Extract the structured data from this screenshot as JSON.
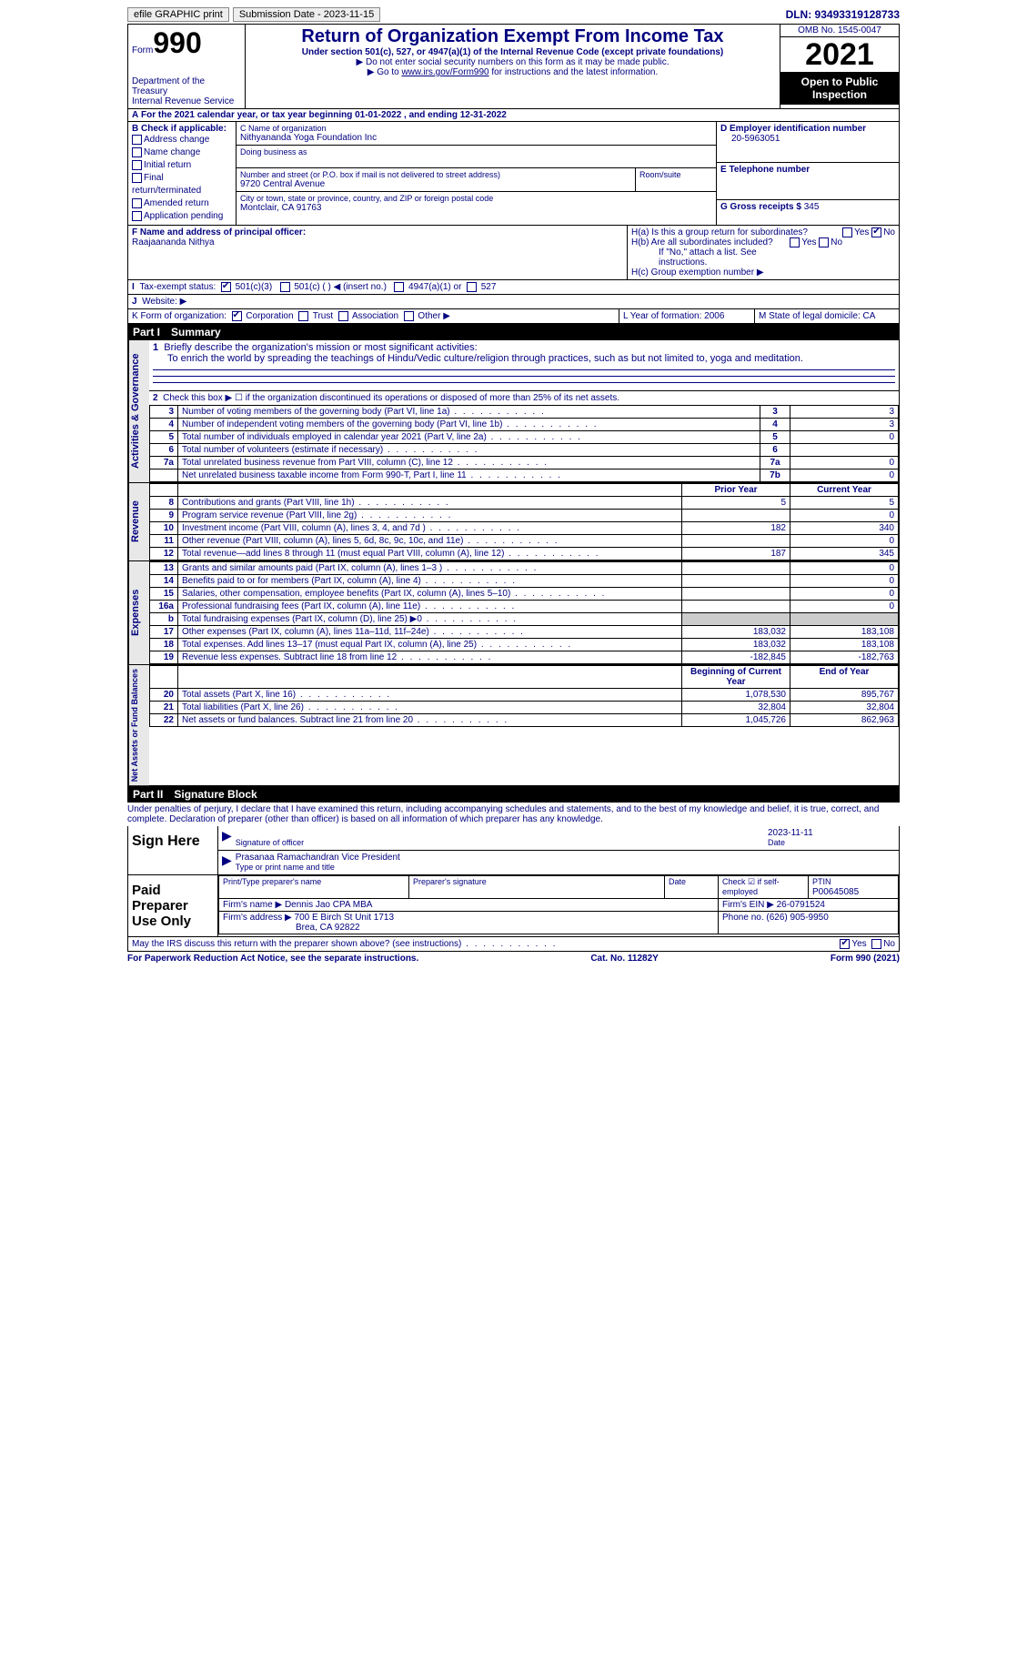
{
  "topbar": {
    "efile": "efile GRAPHIC print",
    "submission": "Submission Date - 2023-11-15",
    "dln": "DLN: 93493319128733"
  },
  "header": {
    "form_label": "Form",
    "form_number": "990",
    "dept": "Department of the Treasury",
    "irs": "Internal Revenue Service",
    "title": "Return of Organization Exempt From Income Tax",
    "subtitle": "Under section 501(c), 527, or 4947(a)(1) of the Internal Revenue Code (except private foundations)",
    "note1": "▶ Do not enter social security numbers on this form as it may be made public.",
    "note2_pre": "▶ Go to ",
    "note2_link": "www.irs.gov/Form990",
    "note2_post": " for instructions and the latest information.",
    "omb": "OMB No. 1545-0047",
    "year": "2021",
    "open": "Open to Public Inspection"
  },
  "periodA": "For the 2021 calendar year, or tax year beginning 01-01-2022   , and ending 12-31-2022",
  "B": {
    "label": "B Check if applicable:",
    "items": [
      "Address change",
      "Name change",
      "Initial return",
      "Final return/terminated",
      "Amended return",
      "Application pending"
    ]
  },
  "C": {
    "name_label": "C Name of organization",
    "name": "Nithyananda Yoga Foundation Inc",
    "dba_label": "Doing business as",
    "addr_label": "Number and street (or P.O. box if mail is not delivered to street address)",
    "room_label": "Room/suite",
    "addr": "9720 Central Avenue",
    "city_label": "City or town, state or province, country, and ZIP or foreign postal code",
    "city": "Montclair, CA  91763"
  },
  "D": {
    "label": "D Employer identification number",
    "value": "20-5963051"
  },
  "E": {
    "label": "E Telephone number",
    "value": ""
  },
  "G": {
    "label": "G Gross receipts $",
    "value": "345"
  },
  "F": {
    "label": "F  Name and address of principal officer:",
    "value": "Raajaananda Nithya"
  },
  "H": {
    "a": "H(a)  Is this a group return for subordinates?",
    "b": "H(b)  Are all subordinates included?",
    "b_note": "If \"No,\" attach a list. See instructions.",
    "c": "H(c)  Group exemption number ▶",
    "yes": "Yes",
    "no": "No"
  },
  "I": {
    "label": "Tax-exempt status:",
    "opts": [
      "501(c)(3)",
      "501(c) (  ) ◀ (insert no.)",
      "4947(a)(1) or",
      "527"
    ]
  },
  "J": {
    "label": "Website: ▶"
  },
  "K": {
    "label": "K Form of organization:",
    "opts": [
      "Corporation",
      "Trust",
      "Association",
      "Other ▶"
    ]
  },
  "L": {
    "label": "L Year of formation:",
    "value": "2006"
  },
  "M": {
    "label": "M State of legal domicile:",
    "value": "CA"
  },
  "partI": {
    "num": "Part I",
    "title": "Summary"
  },
  "summary": {
    "q1_label": "Briefly describe the organization's mission or most significant activities:",
    "q1_text": "To enrich the world by spreading the teachings of Hindu/Vedic culture/religion through practices, such as but not limited to, yoga and meditation.",
    "q2": "Check this box ▶ ☐  if the organization discontinued its operations or disposed of more than 25% of its net assets.",
    "rows_ag": [
      {
        "n": "3",
        "d": "Number of voting members of the governing body (Part VI, line 1a)",
        "box": "3",
        "v": "3"
      },
      {
        "n": "4",
        "d": "Number of independent voting members of the governing body (Part VI, line 1b)",
        "box": "4",
        "v": "3"
      },
      {
        "n": "5",
        "d": "Total number of individuals employed in calendar year 2021 (Part V, line 2a)",
        "box": "5",
        "v": "0"
      },
      {
        "n": "6",
        "d": "Total number of volunteers (estimate if necessary)",
        "box": "6",
        "v": ""
      },
      {
        "n": "7a",
        "d": "Total unrelated business revenue from Part VIII, column (C), line 12",
        "box": "7a",
        "v": "0"
      },
      {
        "n": "",
        "d": "Net unrelated business taxable income from Form 990-T, Part I, line 11",
        "box": "7b",
        "v": "0"
      }
    ],
    "prior": "Prior Year",
    "current": "Current Year",
    "revenue": [
      {
        "n": "8",
        "d": "Contributions and grants (Part VIII, line 1h)",
        "p": "5",
        "c": "5"
      },
      {
        "n": "9",
        "d": "Program service revenue (Part VIII, line 2g)",
        "p": "",
        "c": "0"
      },
      {
        "n": "10",
        "d": "Investment income (Part VIII, column (A), lines 3, 4, and 7d )",
        "p": "182",
        "c": "340"
      },
      {
        "n": "11",
        "d": "Other revenue (Part VIII, column (A), lines 5, 6d, 8c, 9c, 10c, and 11e)",
        "p": "",
        "c": "0"
      },
      {
        "n": "12",
        "d": "Total revenue—add lines 8 through 11 (must equal Part VIII, column (A), line 12)",
        "p": "187",
        "c": "345"
      }
    ],
    "expenses": [
      {
        "n": "13",
        "d": "Grants and similar amounts paid (Part IX, column (A), lines 1–3 )",
        "p": "",
        "c": "0"
      },
      {
        "n": "14",
        "d": "Benefits paid to or for members (Part IX, column (A), line 4)",
        "p": "",
        "c": "0"
      },
      {
        "n": "15",
        "d": "Salaries, other compensation, employee benefits (Part IX, column (A), lines 5–10)",
        "p": "",
        "c": "0"
      },
      {
        "n": "16a",
        "d": "Professional fundraising fees (Part IX, column (A), line 11e)",
        "p": "",
        "c": "0"
      },
      {
        "n": "b",
        "d": "Total fundraising expenses (Part IX, column (D), line 25) ▶0",
        "p": "grey",
        "c": "grey"
      },
      {
        "n": "17",
        "d": "Other expenses (Part IX, column (A), lines 11a–11d, 11f–24e)",
        "p": "183,032",
        "c": "183,108"
      },
      {
        "n": "18",
        "d": "Total expenses. Add lines 13–17 (must equal Part IX, column (A), line 25)",
        "p": "183,032",
        "c": "183,108"
      },
      {
        "n": "19",
        "d": "Revenue less expenses. Subtract line 18 from line 12",
        "p": "-182,845",
        "c": "-182,763"
      }
    ],
    "begin": "Beginning of Current Year",
    "end": "End of Year",
    "netassets": [
      {
        "n": "20",
        "d": "Total assets (Part X, line 16)",
        "p": "1,078,530",
        "c": "895,767"
      },
      {
        "n": "21",
        "d": "Total liabilities (Part X, line 26)",
        "p": "32,804",
        "c": "32,804"
      },
      {
        "n": "22",
        "d": "Net assets or fund balances. Subtract line 21 from line 20",
        "p": "1,045,726",
        "c": "862,963"
      }
    ]
  },
  "vlabels": {
    "ag": "Activities & Governance",
    "rev": "Revenue",
    "exp": "Expenses",
    "net": "Net Assets or Fund Balances"
  },
  "partII": {
    "num": "Part II",
    "title": "Signature Block"
  },
  "penalties": "Under penalties of perjury, I declare that I have examined this return, including accompanying schedules and statements, and to the best of my knowledge and belief, it is true, correct, and complete. Declaration of preparer (other than officer) is based on all information of which preparer has any knowledge.",
  "sign": {
    "label": "Sign Here",
    "sig_of_officer": "Signature of officer",
    "date_label": "Date",
    "date": "2023-11-11",
    "name_title": "Prasanaa Ramachandran  Vice President",
    "type_label": "Type or print name and title"
  },
  "paid": {
    "label": "Paid Preparer Use Only",
    "print_label": "Print/Type preparer's name",
    "sig_label": "Preparer's signature",
    "date_label": "Date",
    "check_label": "Check ☑ if self-employed",
    "ptin_label": "PTIN",
    "ptin": "P00645085",
    "firm_name_label": "Firm's name   ▶",
    "firm_name": "Dennis Jao CPA MBA",
    "firm_ein_label": "Firm's EIN ▶",
    "firm_ein": "26-0791524",
    "firm_addr_label": "Firm's address ▶",
    "firm_addr1": "700 E Birch St Unit 1713",
    "firm_addr2": "Brea, CA  92822",
    "phone_label": "Phone no.",
    "phone": "(626) 905-9950"
  },
  "discuss": "May the IRS discuss this return with the preparer shown above? (see instructions)",
  "footer": {
    "left": "For Paperwork Reduction Act Notice, see the separate instructions.",
    "mid": "Cat. No. 11282Y",
    "right": "Form 990 (2021)"
  }
}
